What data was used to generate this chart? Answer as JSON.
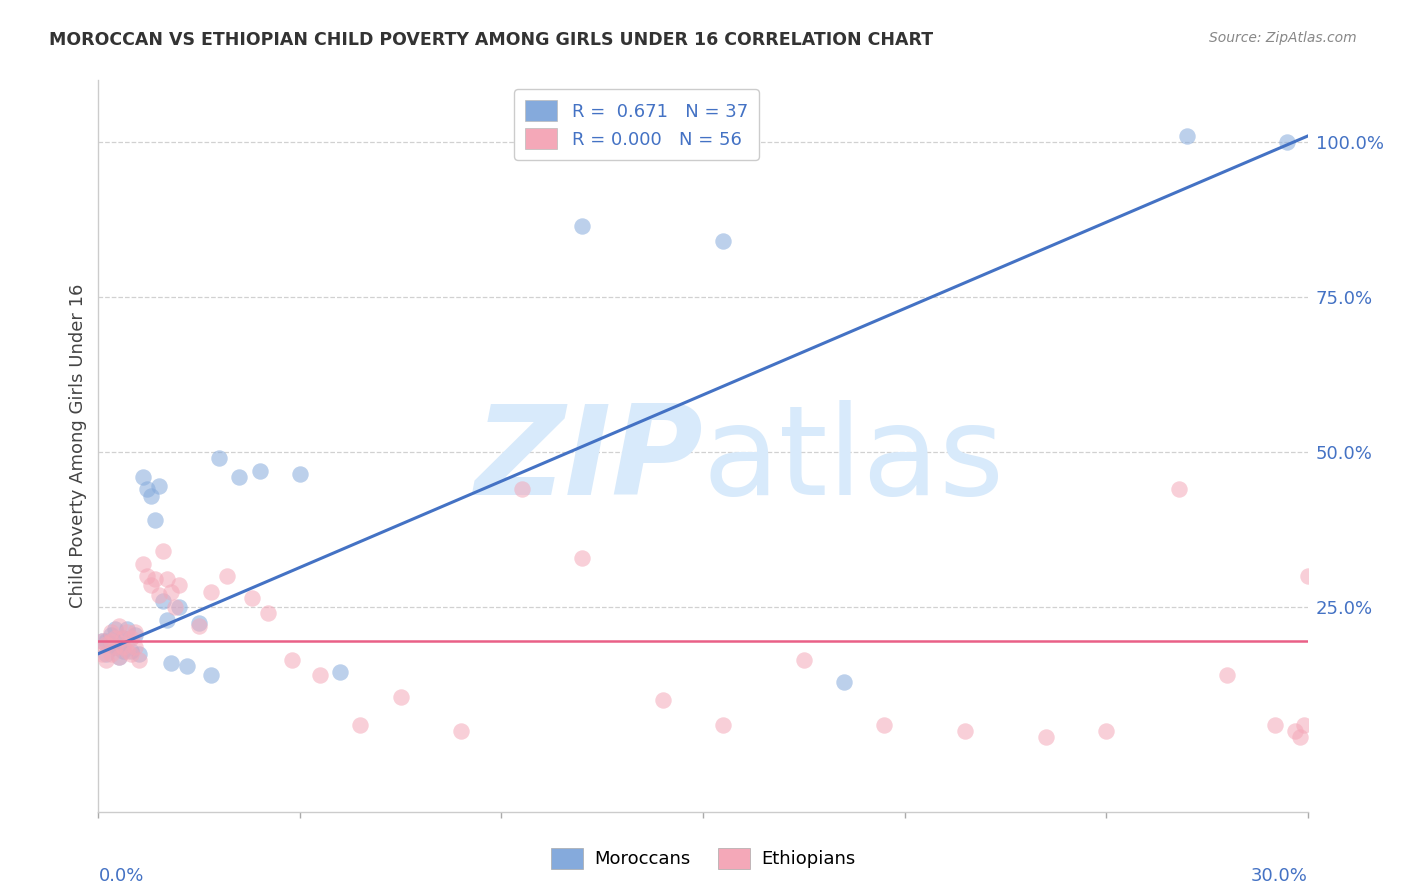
{
  "title": "MOROCCAN VS ETHIOPIAN CHILD POVERTY AMONG GIRLS UNDER 16 CORRELATION CHART",
  "source": "Source: ZipAtlas.com",
  "ylabel": "Child Poverty Among Girls Under 16",
  "right_yticks": [
    0.0,
    0.25,
    0.5,
    0.75,
    1.0
  ],
  "right_yticklabels": [
    "",
    "25.0%",
    "50.0%",
    "75.0%",
    "100.0%"
  ],
  "legend_label_1": "Moroccans",
  "legend_label_2": "Ethiopians",
  "color_blue": "#85AADC",
  "color_pink": "#F4A8B8",
  "color_blue_line": "#4472C4",
  "color_pink_line": "#E96087",
  "watermark_color": "#D8EAFB",
  "moroccan_x": [
    0.001,
    0.002,
    0.002,
    0.003,
    0.003,
    0.004,
    0.004,
    0.005,
    0.005,
    0.006,
    0.006,
    0.007,
    0.008,
    0.009,
    0.01,
    0.011,
    0.012,
    0.013,
    0.014,
    0.015,
    0.016,
    0.017,
    0.018,
    0.02,
    0.022,
    0.025,
    0.028,
    0.03,
    0.035,
    0.04,
    0.05,
    0.06,
    0.12,
    0.155,
    0.185,
    0.27,
    0.295
  ],
  "moroccan_y": [
    0.195,
    0.195,
    0.175,
    0.19,
    0.205,
    0.185,
    0.215,
    0.19,
    0.17,
    0.2,
    0.18,
    0.215,
    0.18,
    0.205,
    0.175,
    0.46,
    0.44,
    0.43,
    0.39,
    0.445,
    0.26,
    0.23,
    0.16,
    0.25,
    0.155,
    0.225,
    0.14,
    0.49,
    0.46,
    0.47,
    0.465,
    0.145,
    0.865,
    0.84,
    0.13,
    1.01,
    1.0
  ],
  "ethiopian_x": [
    0.001,
    0.001,
    0.002,
    0.002,
    0.003,
    0.003,
    0.003,
    0.004,
    0.004,
    0.005,
    0.005,
    0.006,
    0.006,
    0.007,
    0.007,
    0.008,
    0.008,
    0.009,
    0.009,
    0.01,
    0.011,
    0.012,
    0.013,
    0.014,
    0.015,
    0.016,
    0.017,
    0.018,
    0.019,
    0.02,
    0.025,
    0.028,
    0.032,
    0.038,
    0.042,
    0.048,
    0.055,
    0.065,
    0.075,
    0.09,
    0.105,
    0.12,
    0.14,
    0.155,
    0.175,
    0.195,
    0.215,
    0.235,
    0.25,
    0.268,
    0.28,
    0.292,
    0.297,
    0.298,
    0.299,
    0.3
  ],
  "ethiopian_y": [
    0.195,
    0.175,
    0.19,
    0.165,
    0.195,
    0.175,
    0.21,
    0.185,
    0.2,
    0.17,
    0.22,
    0.185,
    0.2,
    0.21,
    0.18,
    0.175,
    0.2,
    0.185,
    0.21,
    0.165,
    0.32,
    0.3,
    0.285,
    0.295,
    0.27,
    0.34,
    0.295,
    0.275,
    0.25,
    0.285,
    0.22,
    0.275,
    0.3,
    0.265,
    0.24,
    0.165,
    0.14,
    0.06,
    0.105,
    0.05,
    0.44,
    0.33,
    0.1,
    0.06,
    0.165,
    0.06,
    0.05,
    0.04,
    0.05,
    0.44,
    0.14,
    0.06,
    0.05,
    0.04,
    0.06,
    0.3
  ],
  "xlim": [
    0.0,
    0.3
  ],
  "ylim": [
    -0.08,
    1.1
  ],
  "blue_line_x": [
    0.0,
    0.3
  ],
  "blue_line_y": [
    0.175,
    1.01
  ],
  "pink_line_y": 0.195,
  "grid_color": "#CCCCCC",
  "background_color": "#FFFFFF",
  "dpi": 100,
  "figwidth": 14.06,
  "figheight": 8.92
}
